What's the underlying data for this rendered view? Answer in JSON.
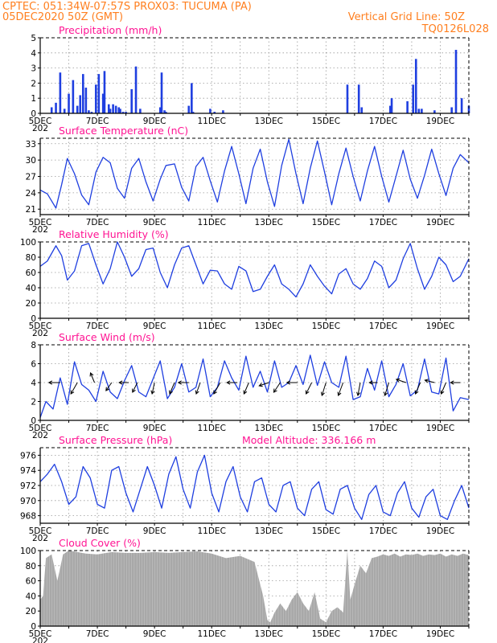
{
  "header": {
    "line1": "CPTEC:    051:34W-07:57S   PROX03: TUCUMA (PA)",
    "line2_left": "05DEC2020 50Z (GMT)",
    "line2_right": "Vertical Grid Line: 50Z",
    "line3_right": "TQ0126L028",
    "color": "#ff7f1f"
  },
  "colors": {
    "title": "#ff1493",
    "line": "#1f3fe0",
    "bar": "#1f3fe0",
    "cloud": "#a8a8a8",
    "grid": "#999999"
  },
  "x_axis": {
    "labels": [
      "5DEC",
      "7DEC",
      "9DEC",
      "11DEC",
      "13DEC",
      "15DEC",
      "17DEC",
      "19DEC"
    ],
    "cutoff_label": "202",
    "range_days": [
      0,
      15
    ]
  },
  "chart_data": [
    {
      "type": "bar",
      "title": "Precipitation (mm/h)",
      "ylim": [
        0,
        5
      ],
      "yticks": [
        0,
        1,
        2,
        3,
        4,
        5
      ],
      "x_days": [
        0.4,
        0.55,
        0.7,
        0.85,
        1.0,
        1.15,
        1.3,
        1.4,
        1.5,
        1.6,
        1.7,
        1.8,
        1.95,
        2.05,
        2.2,
        2.25,
        2.4,
        2.45,
        2.55,
        2.65,
        2.75,
        2.8,
        2.9,
        3.0,
        3.2,
        3.35,
        3.5,
        4.2,
        4.25,
        4.35,
        4.4,
        5.2,
        5.3,
        5.35,
        5.95,
        6.1,
        6.4,
        10.75,
        11.15,
        11.25,
        12.25,
        12.3,
        12.85,
        13.05,
        13.15,
        13.25,
        13.35,
        13.8,
        14.4,
        14.55,
        14.75,
        15.0
      ],
      "values": [
        0.4,
        0.7,
        2.7,
        0.3,
        1.3,
        2.2,
        0.5,
        1.2,
        2.6,
        1.7,
        0.2,
        0.1,
        1.9,
        2.6,
        1.3,
        2.8,
        0.6,
        0.3,
        0.6,
        0.5,
        0.4,
        0.3,
        0.1,
        0.1,
        1.6,
        3.1,
        0.3,
        0.4,
        2.7,
        0.2,
        0.1,
        0.5,
        2.0,
        0.1,
        0.3,
        0.1,
        0.2,
        1.9,
        1.9,
        0.4,
        0.5,
        1.0,
        0.8,
        1.9,
        3.6,
        0.3,
        0.3,
        0.2,
        0.4,
        4.2,
        1.0,
        0.5
      ]
    },
    {
      "type": "line",
      "title": "Surface Temperature (nC)",
      "ylim": [
        20,
        34
      ],
      "yticks": [
        21,
        24,
        27,
        30,
        33
      ],
      "x": [
        0,
        0.25,
        0.55,
        0.75,
        0.95,
        1.2,
        1.45,
        1.7,
        1.95,
        2.2,
        2.45,
        2.7,
        2.95,
        3.2,
        3.45,
        3.7,
        3.95,
        4.2,
        4.4,
        4.7,
        4.95,
        5.2,
        5.45,
        5.7,
        5.95,
        6.2,
        6.45,
        6.7,
        6.95,
        7.2,
        7.45,
        7.7,
        7.95,
        8.2,
        8.45,
        8.7,
        8.95,
        9.2,
        9.45,
        9.7,
        9.95,
        10.2,
        10.45,
        10.7,
        10.95,
        11.2,
        11.45,
        11.7,
        11.95,
        12.2,
        12.45,
        12.7,
        12.95,
        13.2,
        13.45,
        13.7,
        13.95,
        14.2,
        14.45,
        14.7,
        15.0
      ],
      "values": [
        24.5,
        23.8,
        21.2,
        25.5,
        30.3,
        27.5,
        23.6,
        21.8,
        27.8,
        30.5,
        29.5,
        24.8,
        23.0,
        28.5,
        30.3,
        26.0,
        22.5,
        26.5,
        29.0,
        29.3,
        25.0,
        22.5,
        28.8,
        30.5,
        26.2,
        22.3,
        28.0,
        32.5,
        27.5,
        22.0,
        28.5,
        32.0,
        26.0,
        21.5,
        29.0,
        33.8,
        27.5,
        22.0,
        28.5,
        33.5,
        27.8,
        21.8,
        27.5,
        32.2,
        27.0,
        22.5,
        28.0,
        32.5,
        27.0,
        22.3,
        27.0,
        31.8,
        26.5,
        23.0,
        27.2,
        32.0,
        27.5,
        23.5,
        28.5,
        31.0,
        29.5
      ]
    },
    {
      "type": "line",
      "title": "Relative Humidity (%)",
      "ylim": [
        0,
        100
      ],
      "yticks": [
        0,
        20,
        40,
        60,
        80,
        100
      ],
      "x": [
        0,
        0.25,
        0.55,
        0.75,
        0.95,
        1.2,
        1.45,
        1.7,
        1.95,
        2.2,
        2.45,
        2.7,
        2.95,
        3.2,
        3.45,
        3.7,
        3.95,
        4.2,
        4.45,
        4.7,
        4.95,
        5.2,
        5.45,
        5.7,
        5.95,
        6.2,
        6.45,
        6.7,
        6.95,
        7.2,
        7.45,
        7.7,
        7.95,
        8.2,
        8.45,
        8.7,
        8.95,
        9.2,
        9.45,
        9.7,
        9.95,
        10.2,
        10.45,
        10.7,
        10.95,
        11.2,
        11.45,
        11.7,
        11.95,
        12.2,
        12.45,
        12.7,
        12.95,
        13.2,
        13.45,
        13.7,
        13.95,
        14.2,
        14.45,
        14.7,
        15.0
      ],
      "values": [
        68,
        75,
        95,
        82,
        50,
        62,
        95,
        98,
        70,
        45,
        65,
        100,
        80,
        55,
        65,
        90,
        92,
        60,
        40,
        70,
        92,
        95,
        70,
        45,
        63,
        62,
        45,
        38,
        68,
        62,
        35,
        38,
        55,
        70,
        45,
        38,
        28,
        45,
        70,
        55,
        42,
        32,
        58,
        65,
        45,
        38,
        52,
        75,
        68,
        40,
        50,
        78,
        98,
        65,
        38,
        55,
        80,
        70,
        48,
        55,
        78
      ]
    },
    {
      "type": "line",
      "title": "Surface Wind (m/s)",
      "ylim": [
        0,
        8
      ],
      "yticks": [
        0,
        2,
        4,
        6,
        8
      ],
      "x": [
        0,
        0.2,
        0.45,
        0.7,
        0.95,
        1.2,
        1.45,
        1.7,
        1.95,
        2.2,
        2.45,
        2.7,
        2.95,
        3.2,
        3.45,
        3.7,
        3.95,
        4.2,
        4.45,
        4.7,
        4.95,
        5.2,
        5.45,
        5.7,
        5.95,
        6.2,
        6.45,
        6.7,
        6.95,
        7.2,
        7.45,
        7.7,
        7.95,
        8.2,
        8.45,
        8.7,
        8.95,
        9.2,
        9.45,
        9.7,
        9.95,
        10.2,
        10.45,
        10.7,
        10.95,
        11.2,
        11.45,
        11.7,
        11.95,
        12.2,
        12.45,
        12.7,
        12.95,
        13.2,
        13.45,
        13.7,
        13.95,
        14.2,
        14.45,
        14.7,
        15.0
      ],
      "values": [
        0.3,
        2.0,
        1.2,
        4.5,
        1.7,
        6.2,
        3.8,
        3.2,
        2.0,
        5.2,
        3.0,
        2.3,
        4.2,
        5.8,
        3.0,
        2.5,
        4.4,
        6.3,
        2.3,
        3.5,
        6.0,
        3.0,
        3.5,
        6.5,
        2.5,
        3.5,
        6.3,
        4.5,
        3.2,
        6.8,
        3.5,
        5.2,
        3.0,
        6.3,
        3.5,
        4.0,
        5.8,
        3.8,
        6.9,
        3.7,
        6.2,
        4.0,
        3.5,
        6.8,
        2.2,
        2.5,
        5.5,
        3.2,
        6.3,
        2.5,
        3.8,
        6.0,
        2.6,
        3.2,
        6.5,
        3.0,
        2.8,
        6.6,
        1.0,
        2.4,
        2.2
      ],
      "arrows": [
        {
          "x": 0.7,
          "dx": -14,
          "dy": 0
        },
        {
          "x": 1.3,
          "dx": -8,
          "dy": 14
        },
        {
          "x": 1.9,
          "dx": -5,
          "dy": -12
        },
        {
          "x": 2.5,
          "dx": -7,
          "dy": 10
        },
        {
          "x": 3.1,
          "dx": -12,
          "dy": 0
        },
        {
          "x": 3.4,
          "dx": -6,
          "dy": 12
        },
        {
          "x": 4.0,
          "dx": -3,
          "dy": 14
        },
        {
          "x": 4.7,
          "dx": -6,
          "dy": 14
        },
        {
          "x": 5.2,
          "dx": -13,
          "dy": 0
        },
        {
          "x": 5.6,
          "dx": -5,
          "dy": 14
        },
        {
          "x": 6.3,
          "dx": -8,
          "dy": 14
        },
        {
          "x": 6.9,
          "dx": -13,
          "dy": 0
        },
        {
          "x": 7.3,
          "dx": -6,
          "dy": 14
        },
        {
          "x": 8.0,
          "dx": -12,
          "dy": 4
        },
        {
          "x": 8.4,
          "dx": -8,
          "dy": 12
        },
        {
          "x": 9.0,
          "dx": -13,
          "dy": 0
        },
        {
          "x": 9.5,
          "dx": -7,
          "dy": 14
        },
        {
          "x": 10.0,
          "dx": -5,
          "dy": 16
        },
        {
          "x": 10.6,
          "dx": -6,
          "dy": 16
        },
        {
          "x": 11.2,
          "dx": -3,
          "dy": 16
        },
        {
          "x": 11.8,
          "dx": -10,
          "dy": 0
        },
        {
          "x": 12.2,
          "dx": -5,
          "dy": 16
        },
        {
          "x": 12.8,
          "dx": -12,
          "dy": -4
        },
        {
          "x": 13.3,
          "dx": -6,
          "dy": 14
        },
        {
          "x": 13.8,
          "dx": -12,
          "dy": -3
        },
        {
          "x": 14.2,
          "dx": -6,
          "dy": 14
        },
        {
          "x": 14.7,
          "dx": -12,
          "dy": 0
        }
      ]
    },
    {
      "type": "line",
      "title": "Surface Pressure (hPa)",
      "annotation": "Model Altitude: 336.166 m",
      "ylim": [
        967,
        977
      ],
      "yticks": [
        968,
        970,
        972,
        974,
        976
      ],
      "x": [
        0,
        0.25,
        0.5,
        0.75,
        1.0,
        1.25,
        1.5,
        1.75,
        2.0,
        2.25,
        2.5,
        2.75,
        3.0,
        3.25,
        3.5,
        3.75,
        4.0,
        4.25,
        4.5,
        4.75,
        5.0,
        5.25,
        5.5,
        5.75,
        6.0,
        6.25,
        6.5,
        6.75,
        7.0,
        7.25,
        7.5,
        7.75,
        8.0,
        8.25,
        8.5,
        8.75,
        9.0,
        9.25,
        9.5,
        9.75,
        10.0,
        10.25,
        10.5,
        10.75,
        11.0,
        11.25,
        11.5,
        11.75,
        12.0,
        12.25,
        12.5,
        12.75,
        13.0,
        13.25,
        13.5,
        13.75,
        14.0,
        14.25,
        14.5,
        14.75,
        15.0
      ],
      "values": [
        972.5,
        973.5,
        974.8,
        972.5,
        969.5,
        970.5,
        974.5,
        973.0,
        969.5,
        969.0,
        974.0,
        974.5,
        971.0,
        968.5,
        971.5,
        974.5,
        972.0,
        969.0,
        973.5,
        975.8,
        971.5,
        969.0,
        973.8,
        976.0,
        971.0,
        968.5,
        972.5,
        974.5,
        970.5,
        968.5,
        972.5,
        973.0,
        969.5,
        968.5,
        972.0,
        972.5,
        969.0,
        968.0,
        971.5,
        972.5,
        968.8,
        968.2,
        971.5,
        972.0,
        969.0,
        967.5,
        970.8,
        972.0,
        968.5,
        968.0,
        971.0,
        972.5,
        969.0,
        967.8,
        970.5,
        971.5,
        968.0,
        967.5,
        970.0,
        972.0,
        969.0
      ]
    },
    {
      "type": "area",
      "title": "Cloud Cover (%)",
      "ylim": [
        0,
        100
      ],
      "yticks": [
        0,
        20,
        40,
        60,
        80,
        100
      ],
      "x": [
        0,
        0.1,
        0.2,
        0.4,
        0.6,
        0.8,
        1.0,
        1.3,
        1.6,
        2.0,
        2.5,
        3.0,
        3.5,
        4.0,
        4.5,
        5.0,
        5.5,
        6.0,
        6.5,
        7.0,
        7.5,
        7.8,
        7.95,
        8.05,
        8.2,
        8.4,
        8.6,
        8.8,
        9.0,
        9.2,
        9.4,
        9.6,
        9.8,
        10.0,
        10.2,
        10.4,
        10.6,
        10.75,
        10.85,
        11.0,
        11.2,
        11.4,
        11.6,
        11.8,
        12.0,
        12.2,
        12.4,
        12.6,
        12.8,
        13.0,
        13.2,
        13.4,
        13.6,
        13.8,
        14.0,
        14.2,
        14.4,
        14.6,
        14.8,
        15.0
      ],
      "values": [
        35,
        40,
        90,
        95,
        60,
        95,
        100,
        98,
        96,
        95,
        98,
        97,
        97,
        98,
        97,
        98,
        99,
        96,
        90,
        93,
        85,
        40,
        8,
        5,
        18,
        30,
        20,
        35,
        45,
        30,
        20,
        45,
        10,
        5,
        20,
        25,
        18,
        100,
        35,
        55,
        80,
        70,
        90,
        92,
        95,
        93,
        96,
        92,
        95,
        94,
        96,
        93,
        95,
        94,
        96,
        92,
        95,
        93,
        96,
        94
      ]
    }
  ]
}
